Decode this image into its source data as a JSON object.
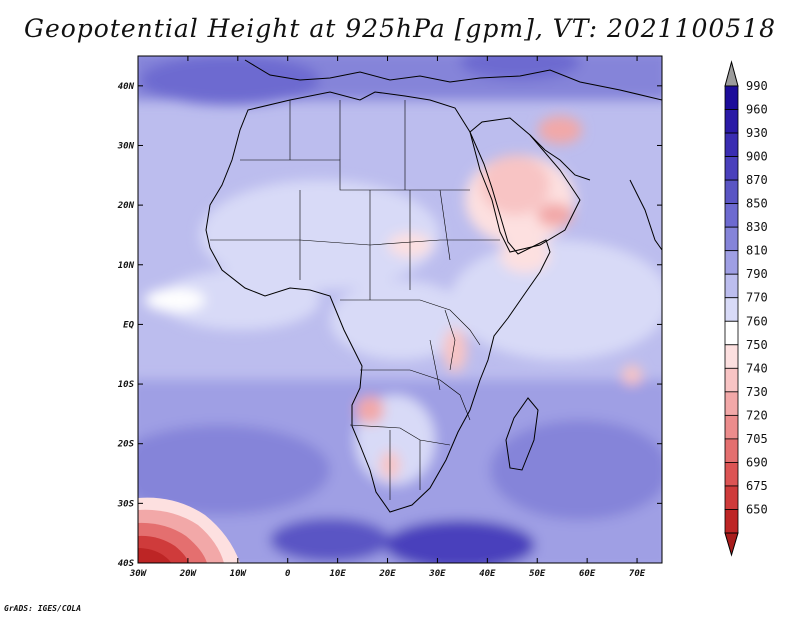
{
  "title": "Geopotential Height at 925hPa [gpm], VT: 2021100518",
  "credit": "GrADS: IGES/COLA",
  "map": {
    "variable": "Geopotential Height",
    "level": "925hPa",
    "units": "gpm",
    "valid_time": "2021100518",
    "lon_range": [
      -30,
      75
    ],
    "lat_range": [
      -40,
      45
    ],
    "lon_ticks": [
      {
        "lon": -30,
        "label": "30W"
      },
      {
        "lon": -20,
        "label": "20W"
      },
      {
        "lon": -10,
        "label": "10W"
      },
      {
        "lon": 0,
        "label": "0"
      },
      {
        "lon": 10,
        "label": "10E"
      },
      {
        "lon": 20,
        "label": "20E"
      },
      {
        "lon": 30,
        "label": "30E"
      },
      {
        "lon": 40,
        "label": "40E"
      },
      {
        "lon": 50,
        "label": "50E"
      },
      {
        "lon": 60,
        "label": "60E"
      },
      {
        "lon": 70,
        "label": "70E"
      }
    ],
    "lat_ticks": [
      {
        "lat": 40,
        "label": "40N"
      },
      {
        "lat": 30,
        "label": "30N"
      },
      {
        "lat": 20,
        "label": "20N"
      },
      {
        "lat": 10,
        "label": "10N"
      },
      {
        "lat": 0,
        "label": "EQ"
      },
      {
        "lat": -10,
        "label": "10S"
      },
      {
        "lat": -20,
        "label": "20S"
      },
      {
        "lat": -30,
        "label": "30S"
      },
      {
        "lat": -40,
        "label": "40S"
      }
    ]
  },
  "colorbar": {
    "levels": [
      {
        "label": "990",
        "color": "#1c0c9a"
      },
      {
        "label": "960",
        "color": "#2a1aa6"
      },
      {
        "label": "930",
        "color": "#3a2db2"
      },
      {
        "label": "900",
        "color": "#4a40bc"
      },
      {
        "label": "870",
        "color": "#5a55c4"
      },
      {
        "label": "850",
        "color": "#6d6ad0"
      },
      {
        "label": "830",
        "color": "#8584d9"
      },
      {
        "label": "810",
        "color": "#9f9fe4"
      },
      {
        "label": "790",
        "color": "#bcbdee"
      },
      {
        "label": "770",
        "color": "#d8daf7"
      },
      {
        "label": "760",
        "color": "#ffffff"
      },
      {
        "label": "750",
        "color": "#fde0e0"
      },
      {
        "label": "740",
        "color": "#f8c4c4"
      },
      {
        "label": "730",
        "color": "#f2a8a8"
      },
      {
        "label": "720",
        "color": "#ec8c8c"
      },
      {
        "label": "705",
        "color": "#e46f6f"
      },
      {
        "label": "690",
        "color": "#dc5454"
      },
      {
        "label": "675",
        "color": "#cf3b3b"
      },
      {
        "label": "650",
        "color": "#bd2525"
      }
    ],
    "over_color": "#9c9c9c",
    "under_color": "#a81c1c"
  }
}
